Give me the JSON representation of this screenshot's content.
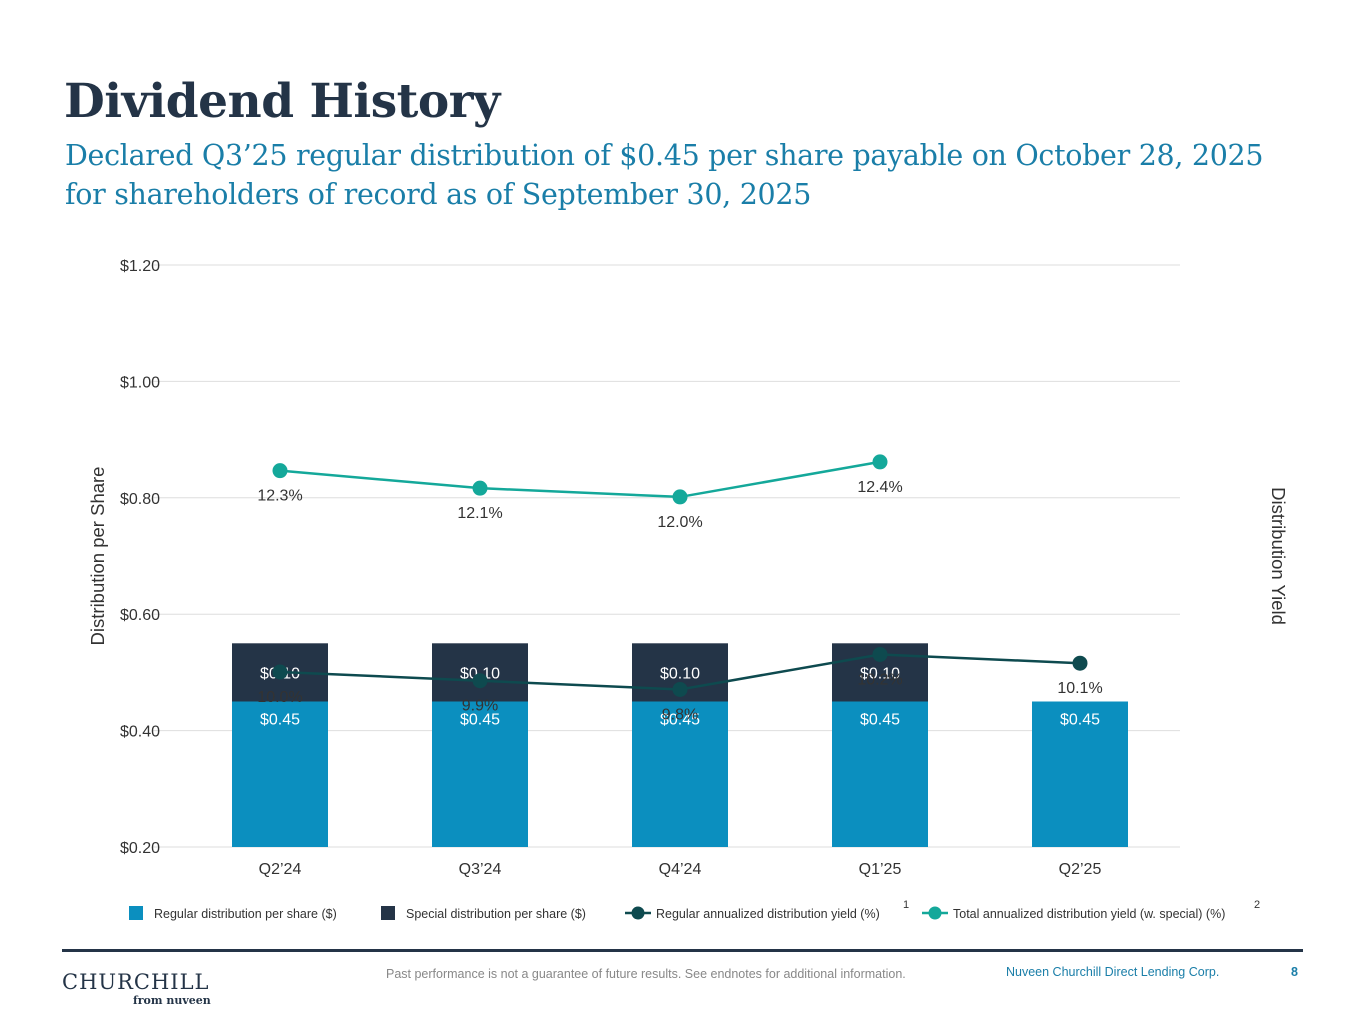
{
  "page": {
    "title": "Dividend History",
    "subtitle": "Declared Q3’25 regular distribution of $0.45 per share payable on October 28, 2025 for shareholders of record as of September 30, 2025"
  },
  "footer": {
    "logo_main": "CHURCHILL",
    "logo_sub": "from nuveen",
    "disclaimer": "Past performance is not a guarantee of future results. See endnotes for additional information.",
    "company": "Nuveen Churchill Direct Lending Corp.",
    "page_number": "8"
  },
  "colors": {
    "regular_bar": "#0b8fbf",
    "special_bar": "#243447",
    "regular_yield": "#0e4a4f",
    "total_yield": "#14a89a",
    "grid": "#dedede",
    "axis_text": "#333333"
  },
  "chart_data": {
    "type": "bar",
    "stacked": true,
    "categories": [
      "Q2’24",
      "Q3’24",
      "Q4’24",
      "Q1’25",
      "Q2’25"
    ],
    "ylabel": "Distribution per Share",
    "y2label": "Distribution Yield",
    "ylim": [
      0.2,
      1.2
    ],
    "y_ticks": [
      0.2,
      0.4,
      0.6,
      0.8,
      1.0,
      1.2
    ],
    "y_tick_labels": [
      "$0.20",
      "$0.40",
      "$0.60",
      "$0.80",
      "$1.00",
      "$1.20"
    ],
    "y2lim": [
      8.0,
      14.65
    ],
    "grid": true,
    "legend_position": "bottom",
    "series": [
      {
        "name": "Regular distribution per share ($)",
        "kind": "bar",
        "values": [
          0.45,
          0.45,
          0.45,
          0.45,
          0.45
        ],
        "labels": [
          "$0.45",
          "$0.45",
          "$0.45",
          "$0.45",
          "$0.45"
        ]
      },
      {
        "name": "Special distribution per share ($)",
        "kind": "bar",
        "values": [
          0.1,
          0.1,
          0.1,
          0.1,
          null
        ],
        "labels": [
          "$0.10",
          "$0.10",
          "$0.10",
          "$0.10",
          null
        ]
      },
      {
        "name": "Regular annualized distribution yield (%)",
        "footnote": "1",
        "kind": "line",
        "axis": "secondary",
        "values": [
          10.0,
          9.9,
          9.8,
          10.2,
          10.1
        ],
        "labels": [
          "10.0%",
          "9.9%",
          "9.8%",
          "10.2%",
          "10.1%"
        ]
      },
      {
        "name": "Total annualized distribution yield (w. special) (%)",
        "footnote": "2",
        "kind": "line",
        "axis": "secondary",
        "values": [
          12.3,
          12.1,
          12.0,
          12.4,
          null
        ],
        "labels": [
          "12.3%",
          "12.1%",
          "12.0%",
          "12.4%",
          null
        ]
      }
    ]
  }
}
